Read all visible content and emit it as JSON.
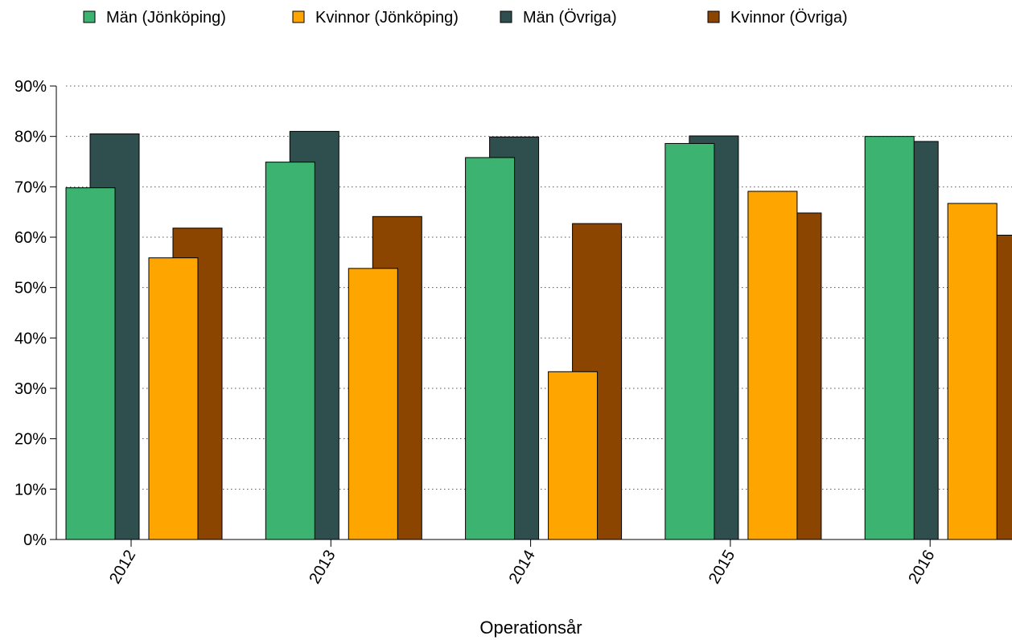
{
  "chart_data": {
    "type": "bar",
    "title": "",
    "xlabel": "Operationsår",
    "ylabel": "",
    "categories": [
      "2012",
      "2013",
      "2014",
      "2015",
      "2016"
    ],
    "series": [
      {
        "name": "Män (Jönköping)",
        "color": "#3cb371",
        "values": [
          69.8,
          74.9,
          75.8,
          78.6,
          80.0
        ]
      },
      {
        "name": "Män (Övriga)",
        "color": "#2f4f4f",
        "values": [
          80.5,
          81.0,
          79.9,
          80.1,
          79.0
        ]
      },
      {
        "name": "Kvinnor (Jönköping)",
        "color": "#ffa500",
        "values": [
          55.9,
          53.8,
          33.3,
          69.1,
          66.7
        ]
      },
      {
        "name": "Kvinnor (Övriga)",
        "color": "#8b4500",
        "values": [
          61.8,
          64.1,
          62.7,
          64.8,
          60.4
        ]
      }
    ],
    "ylim": [
      0,
      90
    ],
    "yticks": [
      0,
      10,
      20,
      30,
      40,
      50,
      60,
      70,
      80,
      90
    ],
    "ytick_format": "percent",
    "grid": true,
    "legend_position": "top",
    "legend_order": [
      "Män (Jönköping)",
      "Kvinnor (Jönköping)",
      "Män (Övriga)",
      "Kvinnor (Övriga)"
    ]
  }
}
